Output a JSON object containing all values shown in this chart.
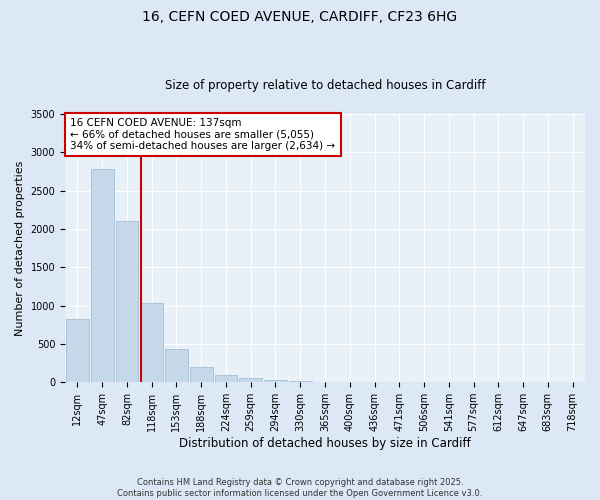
{
  "title_line1": "16, CEFN COED AVENUE, CARDIFF, CF23 6HG",
  "title_line2": "Size of property relative to detached houses in Cardiff",
  "xlabel": "Distribution of detached houses by size in Cardiff",
  "ylabel": "Number of detached properties",
  "bar_labels": [
    "12sqm",
    "47sqm",
    "82sqm",
    "118sqm",
    "153sqm",
    "188sqm",
    "224sqm",
    "259sqm",
    "294sqm",
    "330sqm",
    "365sqm",
    "400sqm",
    "436sqm",
    "471sqm",
    "506sqm",
    "541sqm",
    "577sqm",
    "612sqm",
    "647sqm",
    "683sqm",
    "718sqm"
  ],
  "bar_values": [
    830,
    2780,
    2100,
    1030,
    430,
    200,
    100,
    60,
    30,
    10,
    5,
    0,
    0,
    0,
    0,
    0,
    0,
    0,
    0,
    0,
    0
  ],
  "bar_color": "#c6d9ea",
  "bar_edge_color": "#9ab8d0",
  "vline_color": "#cc0000",
  "vline_pos": 2.57,
  "annotation_text": "16 CEFN COED AVENUE: 137sqm\n← 66% of detached houses are smaller (5,055)\n34% of semi-detached houses are larger (2,634) →",
  "annotation_box_color": "#ffffff",
  "annotation_box_edge": "#cc0000",
  "ylim": [
    0,
    3500
  ],
  "yticks": [
    0,
    500,
    1000,
    1500,
    2000,
    2500,
    3000,
    3500
  ],
  "footer": "Contains HM Land Registry data © Crown copyright and database right 2025.\nContains public sector information licensed under the Open Government Licence v3.0.",
  "bg_color": "#dce8f5",
  "plot_bg_color": "#e8f0f8",
  "title1_fontsize": 10,
  "title2_fontsize": 8.5,
  "ylabel_fontsize": 8,
  "xlabel_fontsize": 8.5,
  "tick_fontsize": 7,
  "ann_fontsize": 7.5,
  "footer_fontsize": 6
}
